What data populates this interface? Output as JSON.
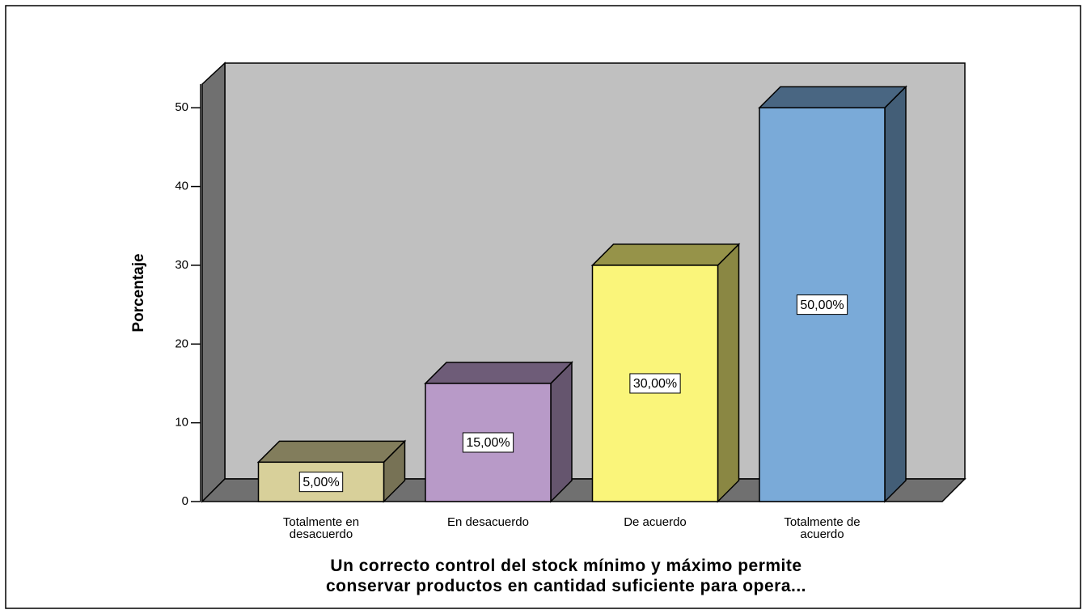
{
  "chart_data": {
    "type": "bar3d",
    "categories": [
      "Totalmente en desacuerdo",
      "En desacuerdo",
      "De acuerdo",
      "Totalmente de acuerdo"
    ],
    "values": [
      5,
      15,
      30,
      50
    ],
    "value_labels": [
      "5,00%",
      "15,00%",
      "30,00%",
      "50,00%"
    ],
    "colors": [
      "#d8d09a",
      "#b89ac8",
      "#faf57a",
      "#7aaad8"
    ],
    "ylabel": "Porcentaje",
    "xlabel": [
      "Un correcto control del stock mínimo y máximo permite",
      "conservar productos en cantidad suficiente para opera..."
    ],
    "ylim": [
      0,
      53
    ],
    "yticks": [
      0,
      10,
      20,
      30,
      40,
      50
    ]
  }
}
